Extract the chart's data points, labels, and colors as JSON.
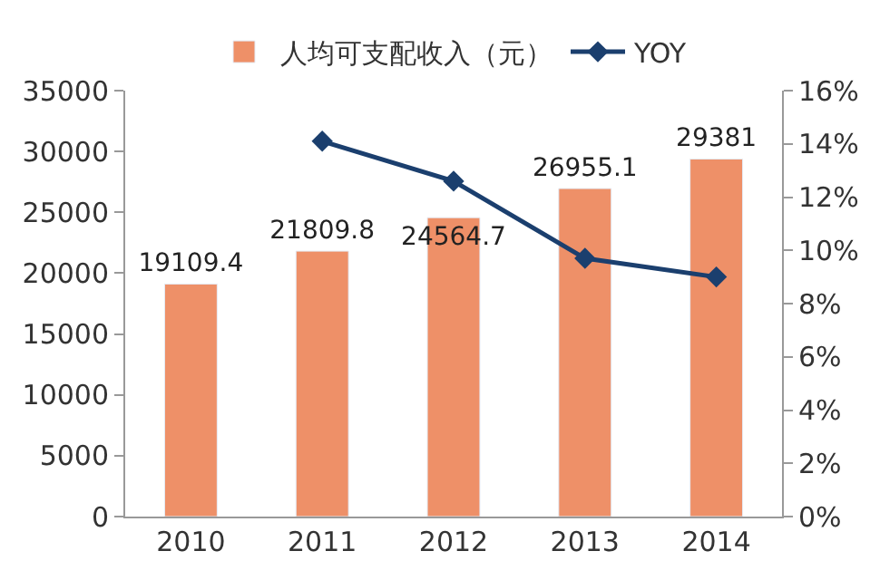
{
  "chart_data": {
    "type": "bar",
    "categories": [
      "2010",
      "2011",
      "2012",
      "2013",
      "2014"
    ],
    "series": [
      {
        "name": "人均可支配收入（元）",
        "color": "#ee9068",
        "values": [
          19109.4,
          21809.8,
          24564.7,
          26955.1,
          29381
        ],
        "value_labels": [
          "19109.4",
          "21809.8",
          "24564.7",
          "26955.1",
          "29381"
        ]
      },
      {
        "name": "YOY",
        "type": "line",
        "axis": "y2",
        "color": "#1b3f6e",
        "marker": "diamond",
        "values": [
          null,
          14.1,
          12.6,
          9.7,
          9.0
        ]
      }
    ],
    "ylim": [
      0,
      35000
    ],
    "yticks": [
      0,
      5000,
      10000,
      15000,
      20000,
      25000,
      30000,
      35000
    ],
    "y2lim": [
      0,
      16
    ],
    "y2ticks": [
      {
        "value": 0,
        "label": "0%"
      },
      {
        "value": 2,
        "label": "2%"
      },
      {
        "value": 4,
        "label": "4%"
      },
      {
        "value": 6,
        "label": "6%"
      },
      {
        "value": 8,
        "label": "8%"
      },
      {
        "value": 10,
        "label": "10%"
      },
      {
        "value": 12,
        "label": "12%"
      },
      {
        "value": 14,
        "label": "14%"
      },
      {
        "value": 16,
        "label": "16%"
      }
    ],
    "legend": "top"
  }
}
